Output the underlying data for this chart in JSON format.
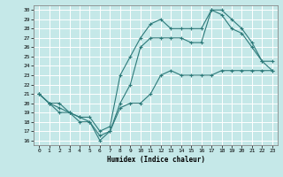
{
  "title": "",
  "xlabel": "Humidex (Indice chaleur)",
  "ylabel": "",
  "bg_color": "#c5e8e8",
  "line_color": "#2d7a7a",
  "grid_color": "#ffffff",
  "xlim": [
    -0.5,
    23.5
  ],
  "ylim": [
    15.5,
    30.5
  ],
  "xticks": [
    0,
    1,
    2,
    3,
    4,
    5,
    6,
    7,
    8,
    9,
    10,
    11,
    12,
    13,
    14,
    15,
    16,
    17,
    18,
    19,
    20,
    21,
    22,
    23
  ],
  "yticks": [
    16,
    17,
    18,
    19,
    20,
    21,
    22,
    23,
    24,
    25,
    26,
    27,
    28,
    29,
    30
  ],
  "line1_x": [
    0,
    1,
    2,
    3,
    4,
    5,
    6,
    7,
    8,
    9,
    10,
    11,
    12,
    13,
    14,
    15,
    16,
    17,
    18,
    19,
    20,
    21,
    22,
    23
  ],
  "line1_y": [
    21,
    20,
    19.5,
    19,
    18.5,
    18,
    16.5,
    17,
    20,
    22,
    26,
    27,
    27,
    27,
    27,
    26.5,
    26.5,
    30,
    29.5,
    28,
    27.5,
    26,
    24.5,
    23.5
  ],
  "line2_x": [
    0,
    1,
    2,
    3,
    4,
    5,
    6,
    7,
    8,
    9,
    10,
    11,
    12,
    13,
    14,
    15,
    16,
    17,
    18,
    19,
    20,
    21,
    22,
    23
  ],
  "line2_y": [
    21,
    20,
    19,
    19,
    18.5,
    18.5,
    17,
    17.5,
    23,
    25,
    27,
    28.5,
    29,
    28,
    28,
    28,
    28,
    30,
    30,
    29,
    28,
    26.5,
    24.5,
    24.5
  ],
  "line3_x": [
    0,
    1,
    2,
    3,
    4,
    5,
    6,
    7,
    8,
    9,
    10,
    11,
    12,
    13,
    14,
    15,
    16,
    17,
    18,
    19,
    20,
    21,
    22,
    23
  ],
  "line3_y": [
    21,
    20,
    20,
    19,
    18,
    18,
    16,
    17,
    19.5,
    20,
    20,
    21,
    23,
    23.5,
    23,
    23,
    23,
    23,
    23.5,
    23.5,
    23.5,
    23.5,
    23.5,
    23.5
  ]
}
